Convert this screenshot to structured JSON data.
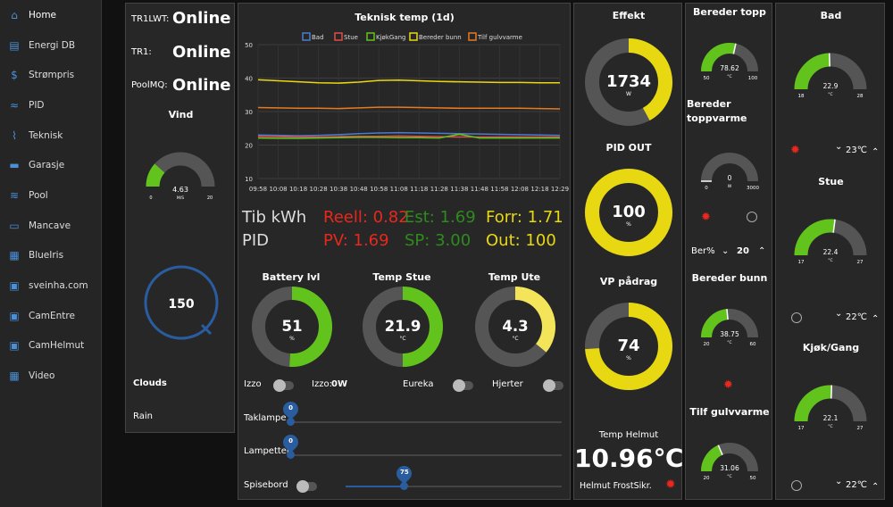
{
  "nav": [
    {
      "label": "Home",
      "icon": "home-icon",
      "glyph": "⌂"
    },
    {
      "label": "Energi DB",
      "icon": "list-icon",
      "glyph": "▤"
    },
    {
      "label": "Strømpris",
      "icon": "dollar-icon",
      "glyph": "$"
    },
    {
      "label": "PID",
      "icon": "wave-icon",
      "glyph": "≈"
    },
    {
      "label": "Teknisk",
      "icon": "chart-line-icon",
      "glyph": "⌇"
    },
    {
      "label": "Garasje",
      "icon": "car-icon",
      "glyph": "▬"
    },
    {
      "label": "Pool",
      "icon": "swimmer-icon",
      "glyph": "≋"
    },
    {
      "label": "Mancave",
      "icon": "couch-icon",
      "glyph": "▭"
    },
    {
      "label": "BlueIris",
      "icon": "grid-icon",
      "glyph": "▦"
    },
    {
      "label": "sveinha.com",
      "icon": "window-icon",
      "glyph": "▣"
    },
    {
      "label": "CamEntre",
      "icon": "window-icon",
      "glyph": "▣"
    },
    {
      "label": "CamHelmut",
      "icon": "window-icon",
      "glyph": "▣"
    },
    {
      "label": "Video",
      "icon": "grid-icon",
      "glyph": "▦"
    }
  ],
  "status": {
    "tr1lwt_label": "TR1LWT:",
    "tr1lwt_value": "Online",
    "tr1_label": "TR1:",
    "tr1_value": "Online",
    "poolmq_label": "PoolMQ:",
    "poolmq_value": "Online",
    "vind_title": "Vind",
    "vind_value": "4.63",
    "vind_unit": "M/S",
    "vind_min": "0",
    "vind_max": "20",
    "dial_value": "150",
    "clouds": "Clouds",
    "rain": "Rain"
  },
  "colors": {
    "green": "#62c31d",
    "yellow": "#e8d812",
    "yellowLight": "#f3e45a",
    "blue": "#2a5d9f",
    "grey": "#555555",
    "red": "#e8281c"
  },
  "chart_data": {
    "type": "line",
    "title": "Teknisk temp (1d)",
    "x": [
      "09:58",
      "10:08",
      "10:18",
      "10:28",
      "10:38",
      "10:48",
      "10:58",
      "11:08",
      "11:18",
      "11:28",
      "11:38",
      "11:48",
      "11:58",
      "12:08",
      "12:18",
      "12:29"
    ],
    "ylim": [
      10,
      50
    ],
    "yticks": [
      10,
      20,
      30,
      40,
      50
    ],
    "series": [
      {
        "name": "Bad",
        "color": "#4b7bd0",
        "values": [
          23,
          22.9,
          22.8,
          22.9,
          23.1,
          23.4,
          23.6,
          23.7,
          23.6,
          23.5,
          23.4,
          23.3,
          23.2,
          23.1,
          23,
          22.9
        ]
      },
      {
        "name": "Stue",
        "color": "#e24b4b",
        "values": [
          22.6,
          22.5,
          22.4,
          22.4,
          22.5,
          22.6,
          22.6,
          22.7,
          22.6,
          22.5,
          22.4,
          22.4,
          22.4,
          22.4,
          22.4,
          22.4
        ]
      },
      {
        "name": "KjøkGang",
        "color": "#62c31d",
        "values": [
          22.1,
          22,
          22,
          22.1,
          22.2,
          22.3,
          22.3,
          22.2,
          22.2,
          22.1,
          23.2,
          22.1,
          22.1,
          22.1,
          22.1,
          22.1
        ]
      },
      {
        "name": "Bereder bunn",
        "color": "#e8d812",
        "values": [
          39.5,
          39.2,
          38.9,
          38.6,
          38.5,
          38.8,
          39.3,
          39.4,
          39.2,
          39,
          38.9,
          38.8,
          38.7,
          38.7,
          38.6,
          38.6
        ]
      },
      {
        "name": "Tilf gulvvarme",
        "color": "#e47a22",
        "values": [
          31.2,
          31.1,
          31,
          31,
          30.9,
          31.1,
          31.3,
          31.3,
          31.2,
          31.1,
          31,
          31,
          31,
          31,
          30.9,
          30.8
        ]
      }
    ]
  },
  "stats": {
    "tib": "Tib kWh",
    "pid": "PID",
    "reell": "Reell: 0.82",
    "est": "Est: 1.69",
    "forr": "Forr: 1.71",
    "pv": "PV: 1.69",
    "sp": "SP: 3.00",
    "out": "Out: 100"
  },
  "donuts": [
    {
      "title": "Battery lvl",
      "value": "51",
      "unit": "%",
      "fraction": 0.51,
      "color": "#62c31d"
    },
    {
      "title": "Temp Stue",
      "value": "21.9",
      "unit": "°C",
      "fraction": 0.5,
      "color": "#62c31d"
    },
    {
      "title": "Temp Ute",
      "value": "4.3",
      "unit": "°C",
      "fraction": 0.36,
      "color": "#f3e45a"
    }
  ],
  "switches": {
    "izzo": "Izzo",
    "izzo_w_label": "Izzo:",
    "izzo_w_value": "0W",
    "eureka": "Eureka",
    "hjerter": "Hjerter",
    "spisebord": "Spisebord"
  },
  "sliders": [
    {
      "label": "Taklampe",
      "value": "0",
      "fraction": 0
    },
    {
      "label": "Lampetter",
      "value": "0",
      "fraction": 0
    },
    {
      "label": "",
      "value": "75",
      "fraction": 0.27
    }
  ],
  "effekt": {
    "title": "Effekt",
    "value": "1734",
    "unit": "W",
    "fraction": 0.42,
    "color": "#e8d812"
  },
  "pidout": {
    "title": "PID OUT",
    "value": "100",
    "unit": "%",
    "fraction": 1.0,
    "color": "#e8d812"
  },
  "vp": {
    "title": "VP pådrag",
    "value": "74",
    "unit": "%",
    "fraction": 0.74,
    "color": "#e8d812"
  },
  "helmut": {
    "title": "Temp Helmut",
    "value": "10.96℃",
    "frost": "Helmut FrostSikr."
  },
  "bereder": {
    "topp": {
      "title": "Bereder topp",
      "value": "78.62",
      "unit": "°C",
      "min": "50",
      "max": "100",
      "fraction": 0.57
    },
    "toppvarme": {
      "title1": "Bereder",
      "title2": "toppvarme",
      "value": "0",
      "unit": "W",
      "min": "0",
      "max": "3000",
      "fraction": 0
    },
    "ber_label": "Ber%",
    "ber_value": "20",
    "bunn": {
      "title": "Bereder bunn",
      "value": "38.75",
      "unit": "°C",
      "min": "20",
      "max": "60",
      "fraction": 0.47
    },
    "gulv": {
      "title": "Tilf gulvvarme",
      "value": "31.06",
      "unit": "°C",
      "min": "20",
      "max": "50",
      "fraction": 0.37
    }
  },
  "rooms": [
    {
      "title": "Bad",
      "value": "22.9",
      "unit": "°C",
      "min": "18",
      "max": "28",
      "fraction": 0.49,
      "setpoint": "23℃"
    },
    {
      "title": "Stue",
      "value": "22.4",
      "unit": "°C",
      "min": "17",
      "max": "27",
      "fraction": 0.54,
      "setpoint": "22℃"
    },
    {
      "title": "Kjøk/Gang",
      "value": "22.1",
      "unit": "°C",
      "min": "17",
      "max": "27",
      "fraction": 0.51,
      "setpoint": "22℃"
    }
  ]
}
